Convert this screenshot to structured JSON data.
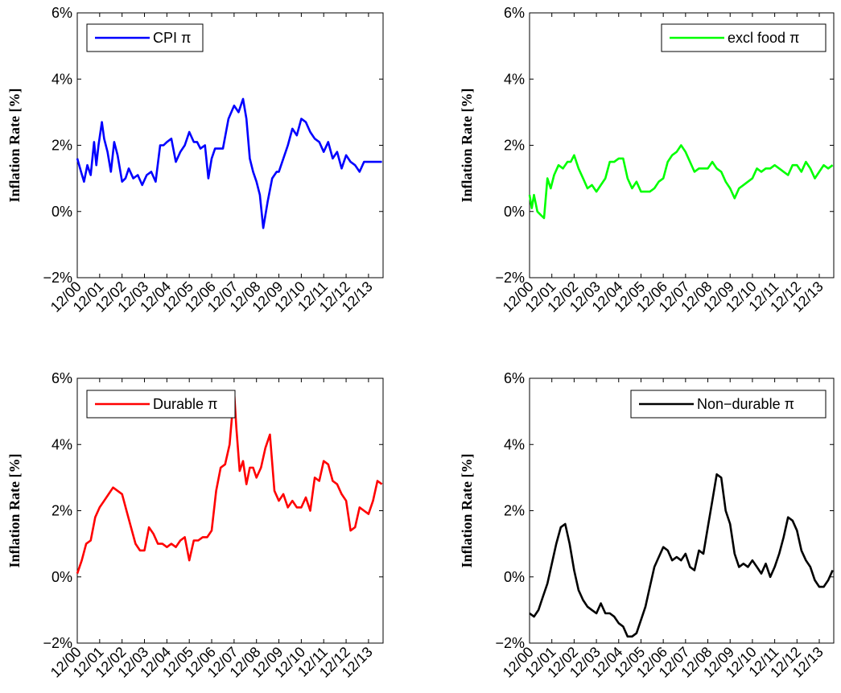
{
  "chart_data": [
    {
      "type": "line",
      "ylabel": "Inflation Rate [%]",
      "ylim": [
        -2,
        6
      ],
      "y_ticks": [
        "−2%",
        "0%",
        "2%",
        "4%",
        "6%"
      ],
      "x_ticks": [
        "12/00",
        "12/01",
        "12/02",
        "12/03",
        "12/04",
        "12/05",
        "12/06",
        "12/07",
        "12/08",
        "12/09",
        "12/10",
        "12/11",
        "12/12",
        "12/13"
      ],
      "legend_position": "top-left",
      "series": [
        {
          "name": "CPI π",
          "color": "#0000ff",
          "x": [
            2000.0,
            2000.17,
            2000.3,
            2000.45,
            2000.6,
            2000.75,
            2000.85,
            2000.95,
            2001.1,
            2001.2,
            2001.35,
            2001.5,
            2001.65,
            2001.8,
            2002.0,
            2002.15,
            2002.3,
            2002.5,
            2002.7,
            2002.9,
            2003.1,
            2003.3,
            2003.5,
            2003.7,
            2003.85,
            2004.0,
            2004.2,
            2004.4,
            2004.6,
            2004.8,
            2005.0,
            2005.2,
            2005.35,
            2005.5,
            2005.7,
            2005.85,
            2006.0,
            2006.15,
            2006.3,
            2006.5,
            2006.75,
            2007.0,
            2007.2,
            2007.4,
            2007.55,
            2007.7,
            2007.85,
            2008.0,
            2008.15,
            2008.3,
            2008.5,
            2008.7,
            2008.9,
            2009.0,
            2009.2,
            2009.4,
            2009.6,
            2009.8,
            2010.0,
            2010.2,
            2010.4,
            2010.6,
            2010.8,
            2011.0,
            2011.2,
            2011.4,
            2011.6,
            2011.8,
            2012.0,
            2012.2,
            2012.4,
            2012.6,
            2012.8,
            2013.0,
            2013.2,
            2013.4,
            2013.6
          ],
          "values": [
            1.6,
            1.2,
            0.9,
            1.4,
            1.1,
            2.1,
            1.4,
            2.0,
            2.7,
            2.2,
            1.8,
            1.2,
            2.1,
            1.7,
            0.9,
            1.0,
            1.3,
            1.0,
            1.1,
            0.8,
            1.1,
            1.2,
            0.9,
            2.0,
            2.0,
            2.1,
            2.2,
            1.5,
            1.8,
            2.0,
            2.4,
            2.1,
            2.1,
            1.9,
            2.0,
            1.0,
            1.6,
            1.9,
            1.9,
            1.9,
            2.8,
            3.2,
            3.0,
            3.4,
            2.8,
            1.6,
            1.2,
            0.9,
            0.5,
            -0.5,
            0.3,
            1.0,
            1.2,
            1.2,
            1.6,
            2.0,
            2.5,
            2.3,
            2.8,
            2.7,
            2.4,
            2.2,
            2.1,
            1.8,
            2.1,
            1.6,
            1.8,
            1.3,
            1.7,
            1.5,
            1.4,
            1.2,
            1.5,
            1.5,
            1.5,
            1.5,
            1.5
          ]
        }
      ]
    },
    {
      "type": "line",
      "ylabel": "Inflation Rate [%]",
      "ylim": [
        -2,
        6
      ],
      "y_ticks": [
        "−2%",
        "0%",
        "2%",
        "4%",
        "6%"
      ],
      "x_ticks": [
        "12/00",
        "12/01",
        "12/02",
        "12/03",
        "12/04",
        "12/05",
        "12/06",
        "12/07",
        "12/08",
        "12/09",
        "12/10",
        "12/11",
        "12/12",
        "12/13"
      ],
      "legend_position": "top-right",
      "series": [
        {
          "name": "excl food π",
          "color": "#00ff00",
          "x": [
            2000.0,
            2000.1,
            2000.2,
            2000.35,
            2000.5,
            2000.65,
            2000.8,
            2000.95,
            2001.1,
            2001.3,
            2001.5,
            2001.7,
            2001.85,
            2002.0,
            2002.2,
            2002.4,
            2002.6,
            2002.8,
            2003.0,
            2003.2,
            2003.4,
            2003.6,
            2003.8,
            2004.0,
            2004.2,
            2004.4,
            2004.6,
            2004.8,
            2005.0,
            2005.2,
            2005.4,
            2005.6,
            2005.8,
            2006.0,
            2006.2,
            2006.4,
            2006.6,
            2006.8,
            2007.0,
            2007.2,
            2007.4,
            2007.6,
            2007.8,
            2008.0,
            2008.2,
            2008.4,
            2008.6,
            2008.8,
            2009.0,
            2009.2,
            2009.4,
            2009.6,
            2009.8,
            2010.0,
            2010.2,
            2010.4,
            2010.6,
            2010.8,
            2011.0,
            2011.2,
            2011.4,
            2011.6,
            2011.8,
            2012.0,
            2012.2,
            2012.4,
            2012.6,
            2012.8,
            2013.0,
            2013.2,
            2013.4,
            2013.6
          ],
          "values": [
            0.5,
            0.1,
            0.5,
            0.0,
            -0.1,
            -0.2,
            1.0,
            0.7,
            1.1,
            1.4,
            1.3,
            1.5,
            1.5,
            1.7,
            1.3,
            1.0,
            0.7,
            0.8,
            0.6,
            0.8,
            1.0,
            1.5,
            1.5,
            1.6,
            1.6,
            1.0,
            0.7,
            0.9,
            0.6,
            0.6,
            0.6,
            0.7,
            0.9,
            1.0,
            1.5,
            1.7,
            1.8,
            2.0,
            1.8,
            1.5,
            1.2,
            1.3,
            1.3,
            1.3,
            1.5,
            1.3,
            1.2,
            0.9,
            0.7,
            0.4,
            0.7,
            0.8,
            0.9,
            1.0,
            1.3,
            1.2,
            1.3,
            1.3,
            1.4,
            1.3,
            1.2,
            1.1,
            1.4,
            1.4,
            1.2,
            1.5,
            1.3,
            1.0,
            1.2,
            1.4,
            1.3,
            1.4
          ]
        }
      ]
    },
    {
      "type": "line",
      "ylabel": "Inflation Rate [%]",
      "ylim": [
        -2,
        6
      ],
      "y_ticks": [
        "−2%",
        "0%",
        "2%",
        "4%",
        "6%"
      ],
      "x_ticks": [
        "12/00",
        "12/01",
        "12/02",
        "12/03",
        "12/04",
        "12/05",
        "12/06",
        "12/07",
        "12/08",
        "12/09",
        "12/10",
        "12/11",
        "12/12",
        "12/13"
      ],
      "legend_position": "top-left",
      "series": [
        {
          "name": "Durable π",
          "color": "#ff0000",
          "x": [
            2000.0,
            2000.2,
            2000.4,
            2000.6,
            2000.8,
            2001.0,
            2001.2,
            2001.4,
            2001.6,
            2001.8,
            2002.0,
            2002.2,
            2002.4,
            2002.6,
            2002.8,
            2003.0,
            2003.2,
            2003.4,
            2003.6,
            2003.8,
            2004.0,
            2004.2,
            2004.4,
            2004.6,
            2004.8,
            2005.0,
            2005.2,
            2005.4,
            2005.6,
            2005.8,
            2006.0,
            2006.2,
            2006.4,
            2006.6,
            2006.8,
            2007.0,
            2007.1,
            2007.25,
            2007.4,
            2007.55,
            2007.7,
            2007.85,
            2008.0,
            2008.2,
            2008.4,
            2008.6,
            2008.8,
            2009.0,
            2009.2,
            2009.4,
            2009.6,
            2009.8,
            2010.0,
            2010.2,
            2010.4,
            2010.6,
            2010.8,
            2011.0,
            2011.2,
            2011.4,
            2011.6,
            2011.8,
            2012.0,
            2012.2,
            2012.4,
            2012.6,
            2012.8,
            2013.0,
            2013.2,
            2013.4,
            2013.6
          ],
          "values": [
            0.1,
            0.5,
            1.0,
            1.1,
            1.8,
            2.1,
            2.3,
            2.5,
            2.7,
            2.6,
            2.5,
            2.0,
            1.5,
            1.0,
            0.8,
            0.8,
            1.5,
            1.3,
            1.0,
            1.0,
            0.9,
            1.0,
            0.9,
            1.1,
            1.2,
            0.5,
            1.1,
            1.1,
            1.2,
            1.2,
            1.4,
            2.6,
            3.3,
            3.4,
            4.0,
            5.6,
            4.5,
            3.2,
            3.5,
            2.8,
            3.3,
            3.3,
            3.0,
            3.3,
            3.9,
            4.3,
            2.6,
            2.3,
            2.5,
            2.1,
            2.3,
            2.1,
            2.1,
            2.4,
            2.0,
            3.0,
            2.9,
            3.5,
            3.4,
            2.9,
            2.8,
            2.5,
            2.3,
            1.4,
            1.5,
            2.1,
            2.0,
            1.9,
            2.3,
            2.9,
            2.8
          ]
        }
      ]
    },
    {
      "type": "line",
      "ylabel": "Inflation Rate [%]",
      "ylim": [
        -2,
        6
      ],
      "y_ticks": [
        "−2%",
        "0%",
        "2%",
        "4%",
        "6%"
      ],
      "x_ticks": [
        "12/00",
        "12/01",
        "12/02",
        "12/03",
        "12/04",
        "12/05",
        "12/06",
        "12/07",
        "12/08",
        "12/09",
        "12/10",
        "12/11",
        "12/12",
        "12/13"
      ],
      "legend_position": "top-right",
      "series": [
        {
          "name": "Non−durable π",
          "color": "#000000",
          "x": [
            2000.0,
            2000.2,
            2000.4,
            2000.6,
            2000.8,
            2001.0,
            2001.2,
            2001.4,
            2001.6,
            2001.8,
            2002.0,
            2002.2,
            2002.4,
            2002.6,
            2002.8,
            2003.0,
            2003.2,
            2003.4,
            2003.6,
            2003.8,
            2004.0,
            2004.2,
            2004.4,
            2004.6,
            2004.8,
            2005.0,
            2005.2,
            2005.4,
            2005.6,
            2005.8,
            2006.0,
            2006.2,
            2006.4,
            2006.6,
            2006.8,
            2007.0,
            2007.2,
            2007.4,
            2007.6,
            2007.8,
            2008.0,
            2008.2,
            2008.4,
            2008.6,
            2008.8,
            2009.0,
            2009.2,
            2009.4,
            2009.6,
            2009.8,
            2010.0,
            2010.2,
            2010.4,
            2010.6,
            2010.8,
            2011.0,
            2011.2,
            2011.4,
            2011.6,
            2011.8,
            2012.0,
            2012.2,
            2012.4,
            2012.6,
            2012.8,
            2013.0,
            2013.2,
            2013.4,
            2013.6
          ],
          "values": [
            -1.1,
            -1.2,
            -1.0,
            -0.6,
            -0.2,
            0.4,
            1.0,
            1.5,
            1.6,
            1.0,
            0.2,
            -0.4,
            -0.7,
            -0.9,
            -1.0,
            -1.1,
            -0.8,
            -1.1,
            -1.1,
            -1.2,
            -1.4,
            -1.5,
            -1.8,
            -1.8,
            -1.7,
            -1.3,
            -0.9,
            -0.3,
            0.3,
            0.6,
            0.9,
            0.8,
            0.5,
            0.6,
            0.5,
            0.7,
            0.3,
            0.2,
            0.8,
            0.7,
            1.5,
            2.3,
            3.1,
            3.0,
            2.0,
            1.6,
            0.7,
            0.3,
            0.4,
            0.3,
            0.5,
            0.3,
            0.1,
            0.4,
            0.0,
            0.3,
            0.7,
            1.2,
            1.8,
            1.7,
            1.4,
            0.8,
            0.5,
            0.3,
            -0.1,
            -0.3,
            -0.3,
            -0.1,
            0.2
          ]
        }
      ]
    }
  ]
}
